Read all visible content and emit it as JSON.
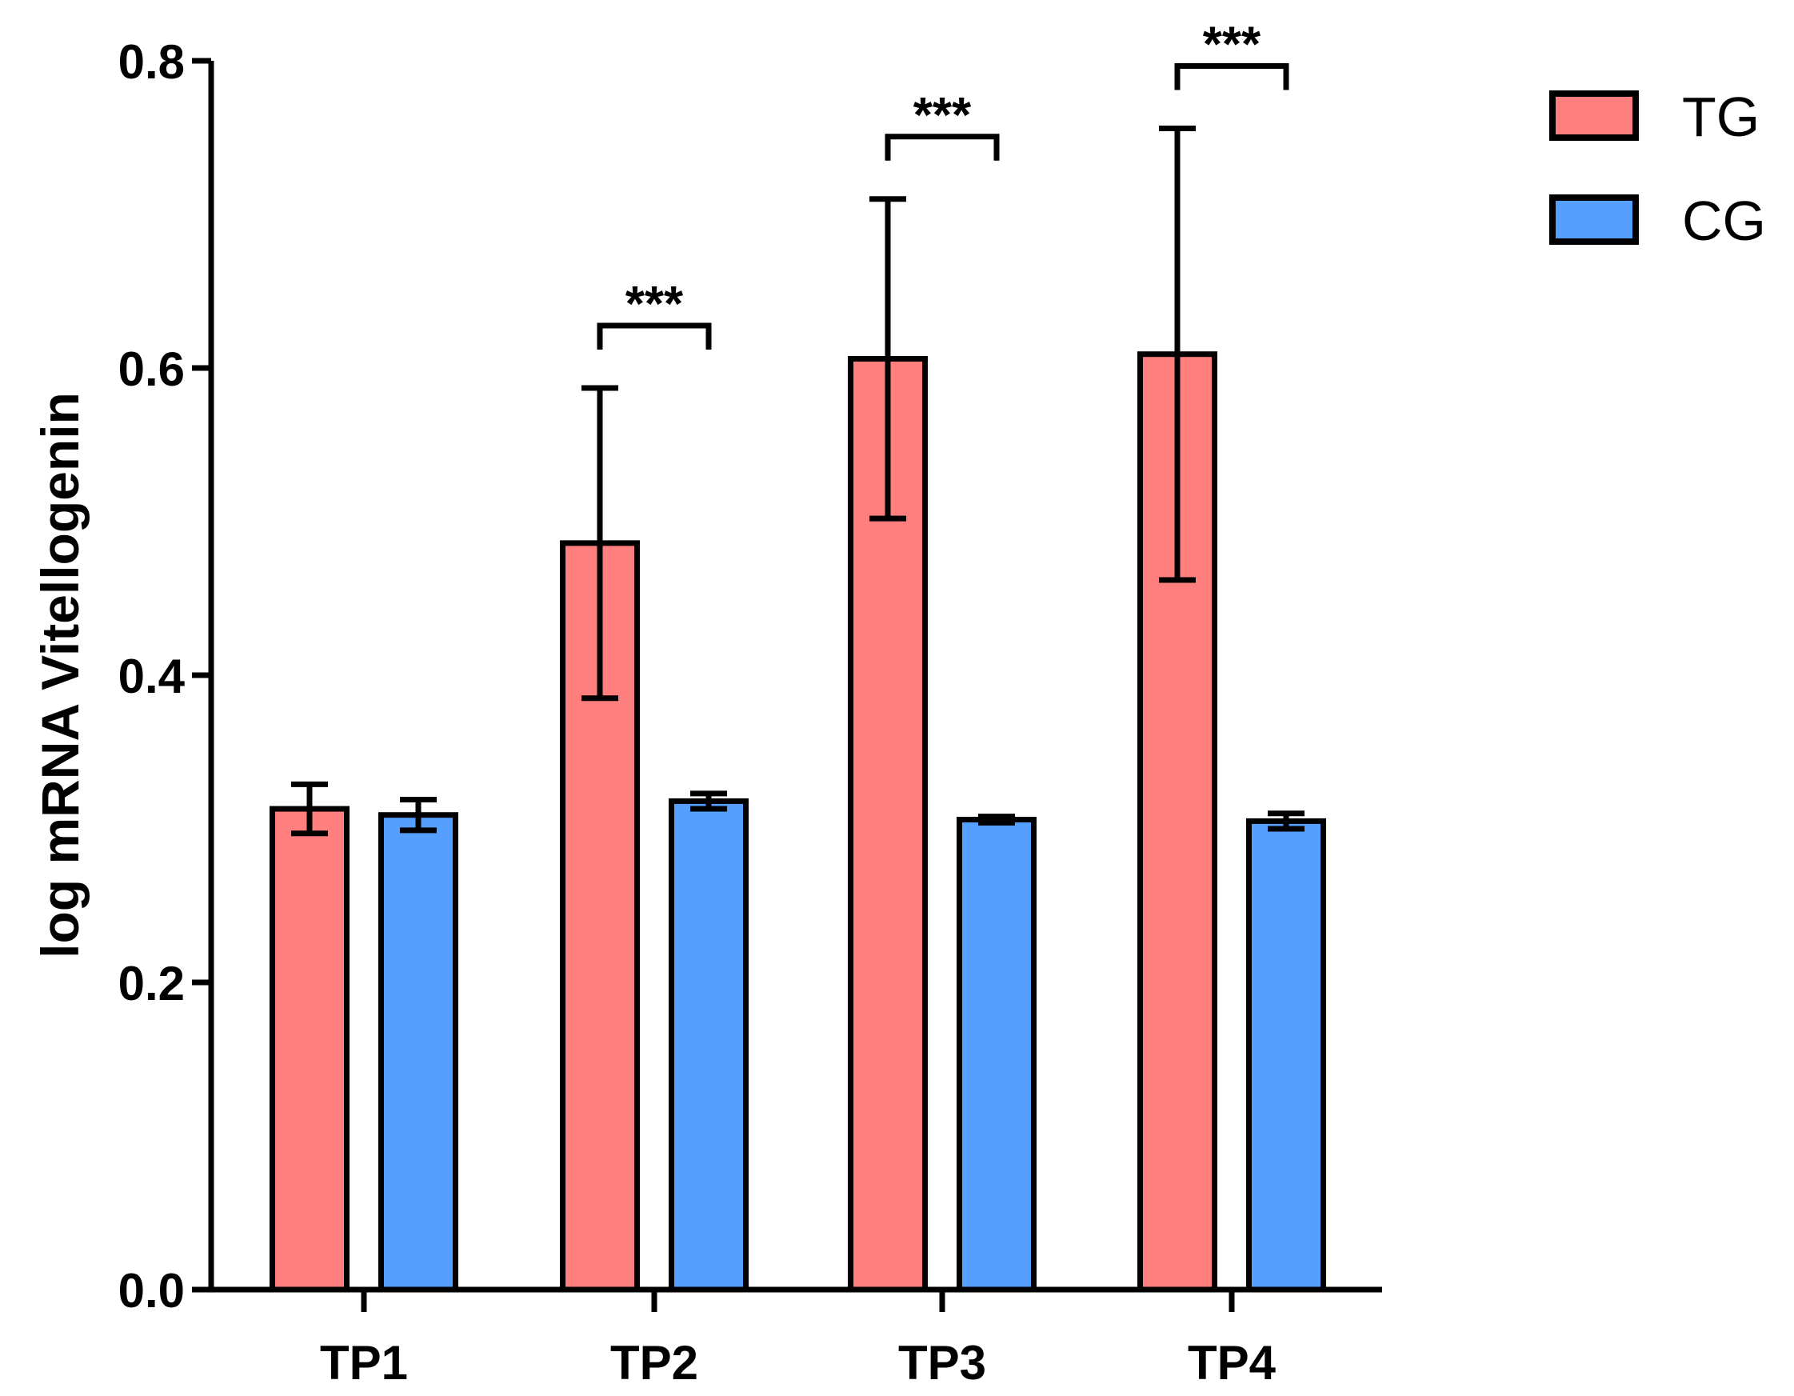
{
  "chart_data": {
    "type": "bar",
    "title": "",
    "xlabel": "",
    "ylabel": "log mRNA Vitellogenin",
    "ylim": [
      0,
      0.8
    ],
    "yticks": [
      "0.0",
      "0.2",
      "0.4",
      "0.6",
      "0.8"
    ],
    "ytick_values": [
      0,
      0.2,
      0.4,
      0.6,
      0.8
    ],
    "categories": [
      "TP1",
      "TP2",
      "TP3",
      "TP4"
    ],
    "series": [
      {
        "name": "TG",
        "color": "#ff7f7f",
        "values": [
          0.313,
          0.486,
          0.606,
          0.609
        ],
        "errors": [
          0.016,
          0.101,
          0.104,
          0.147
        ]
      },
      {
        "name": "CG",
        "color": "#55a0ff",
        "values": [
          0.309,
          0.318,
          0.306,
          0.305
        ],
        "errors": [
          0.01,
          0.005,
          0.002,
          0.005
        ]
      }
    ],
    "significance": [
      {
        "category": "TP2",
        "label": "***"
      },
      {
        "category": "TP3",
        "label": "***"
      },
      {
        "category": "TP4",
        "label": "***"
      }
    ],
    "legend_position": "top-right",
    "grid": false
  }
}
